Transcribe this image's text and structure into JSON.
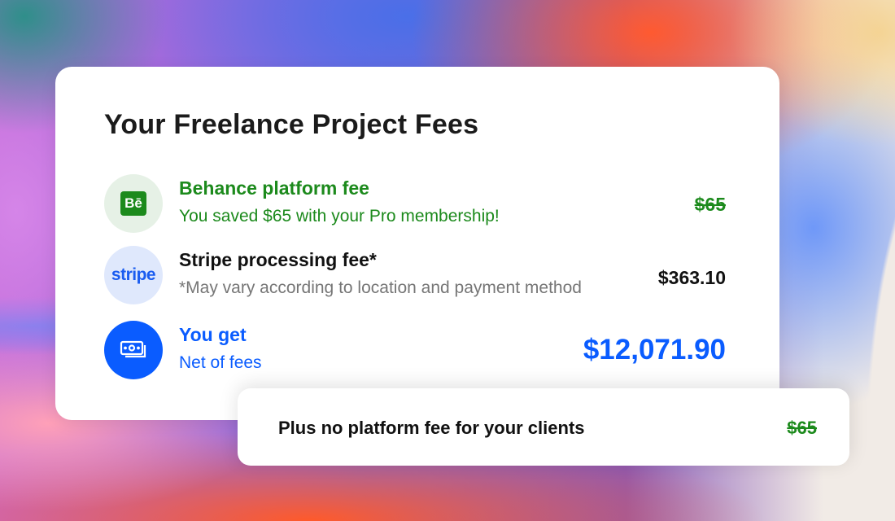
{
  "title": "Your Freelance Project Fees",
  "rows": [
    {
      "icon": "behance-logo-icon",
      "logo_text": "Bē",
      "label": "Behance platform fee",
      "sublabel": "You saved $65 with your Pro membership!",
      "amount": "$65",
      "amount_struck": true,
      "color": "#1c8a1c"
    },
    {
      "icon": "stripe-logo-icon",
      "logo_text": "stripe",
      "label": "Stripe processing fee*",
      "sublabel": "*May vary according to location and payment method",
      "amount": "$363.10",
      "amount_struck": false,
      "color": "#111111"
    },
    {
      "icon": "cash-icon",
      "label": "You get",
      "sublabel": "Net of fees",
      "amount": "$12,071.90",
      "amount_struck": false,
      "color": "#0a5cff"
    }
  ],
  "bottom": {
    "label": "Plus no platform fee for your clients",
    "amount": "$65",
    "amount_struck": true
  }
}
